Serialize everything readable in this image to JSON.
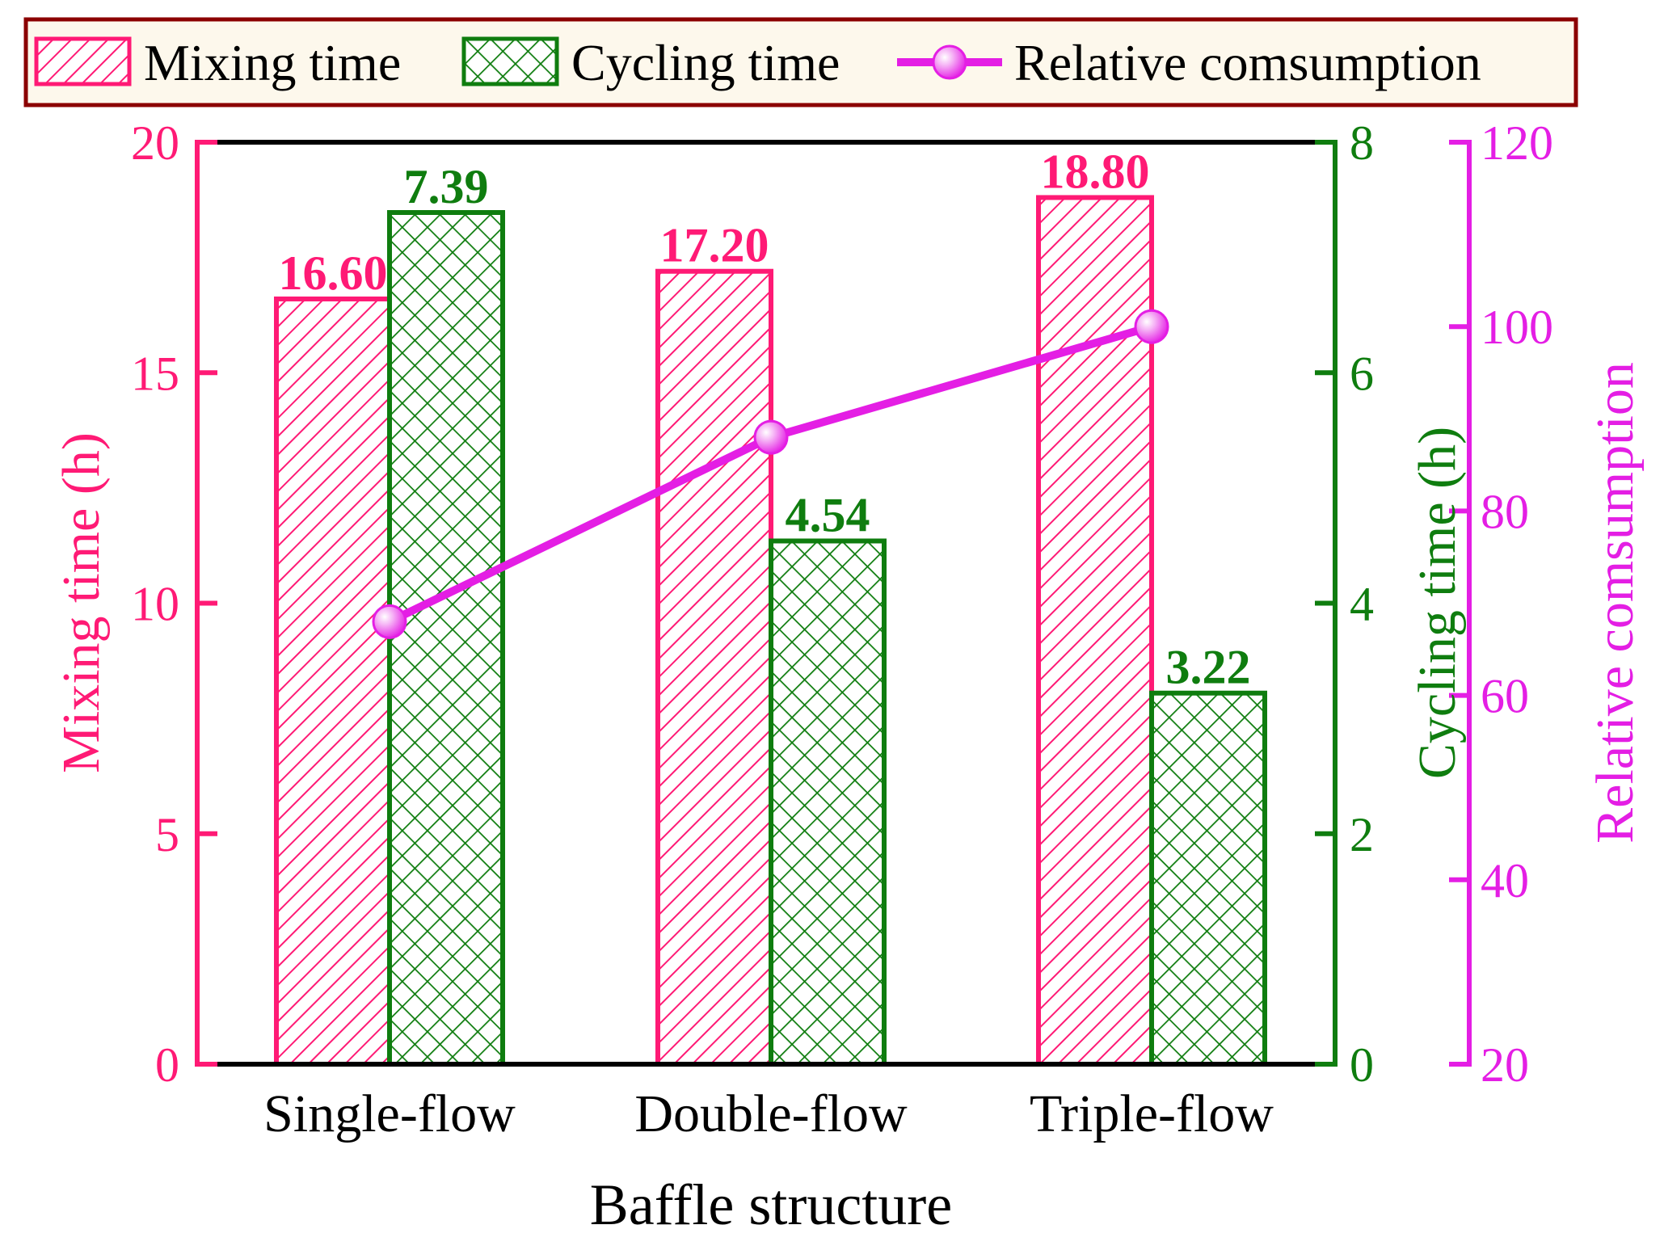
{
  "chart_data": {
    "type": "bar",
    "title": "",
    "xlabel": "Baffle structure",
    "categories": [
      "Single-flow",
      "Double-flow",
      "Triple-flow"
    ],
    "series": [
      {
        "name": "Mixing time",
        "kind": "bar",
        "axis": "left",
        "pattern": "diagonal-hatch",
        "color": "#ff1a75",
        "values": [
          16.6,
          17.2,
          18.8
        ],
        "labels": [
          "16.60",
          "17.20",
          "18.80"
        ]
      },
      {
        "name": "Cycling time",
        "kind": "bar",
        "axis": "right1",
        "pattern": "cross-hatch",
        "color": "#0f7d0f",
        "values": [
          7.39,
          4.54,
          3.22
        ],
        "labels": [
          "7.39",
          "4.54",
          "3.22"
        ]
      },
      {
        "name": "Relative comsumption",
        "kind": "line",
        "axis": "right2",
        "color": "#e41ee4",
        "values": [
          68,
          88,
          100
        ]
      }
    ],
    "axes": {
      "left": {
        "label": "Mixing time (h)",
        "ylim": [
          0,
          20
        ],
        "ticks": [
          "0",
          "5",
          "10",
          "15",
          "20"
        ],
        "color": "#ff1a75"
      },
      "right1": {
        "label": "Cycling time (h)",
        "ylim": [
          0,
          8
        ],
        "ticks": [
          "0",
          "2",
          "4",
          "6",
          "8"
        ],
        "color": "#0f7d0f"
      },
      "right2": {
        "label": "Relative comsumption",
        "ylim": [
          20,
          120
        ],
        "ticks": [
          "20",
          "40",
          "60",
          "80",
          "100",
          "120"
        ],
        "color": "#e41ee4"
      }
    },
    "legend": {
      "placement": "top",
      "entries": [
        "Mixing time",
        "Cycling time",
        "Relative comsumption"
      ],
      "border_color": "#8b0000",
      "background": "#fdf8ec"
    }
  }
}
